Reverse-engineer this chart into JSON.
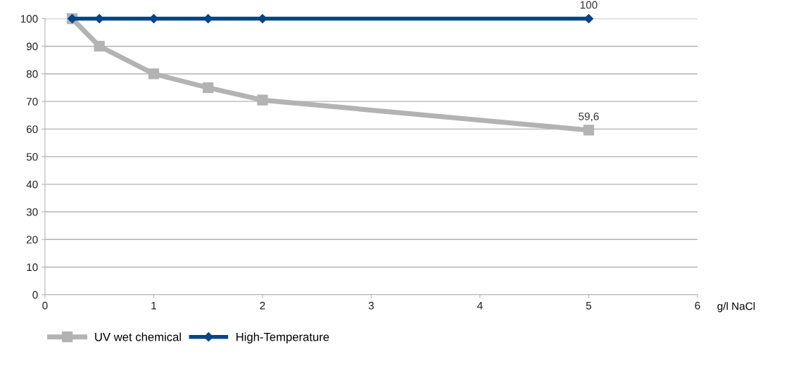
{
  "chart_data": {
    "type": "line",
    "xlabel": "g/l NaCl",
    "xlim": [
      0,
      6
    ],
    "xticks": [
      0,
      1,
      2,
      3,
      4,
      5,
      6
    ],
    "ylim": [
      0,
      100
    ],
    "yticks": [
      0,
      10,
      20,
      30,
      40,
      50,
      60,
      70,
      80,
      90,
      100
    ],
    "grid": "y",
    "legend": "bottom left",
    "line_style": "solid",
    "series": [
      {
        "name": "UV wet chemical",
        "color": "#b3b3b3",
        "marker": "square",
        "x": [
          0.25,
          0.5,
          1,
          1.5,
          2,
          5
        ],
        "values": [
          100,
          90,
          80,
          75,
          70.5,
          59.6
        ],
        "value_labels": [
          null,
          null,
          null,
          null,
          null,
          "59,6"
        ]
      },
      {
        "name": "High-Temperature",
        "color": "#004586",
        "marker": "diamond",
        "x": [
          0.25,
          0.5,
          1,
          1.5,
          2,
          5
        ],
        "values": [
          100,
          100,
          100,
          100,
          100,
          100
        ],
        "value_labels": [
          null,
          null,
          null,
          null,
          null,
          "100"
        ]
      }
    ]
  }
}
